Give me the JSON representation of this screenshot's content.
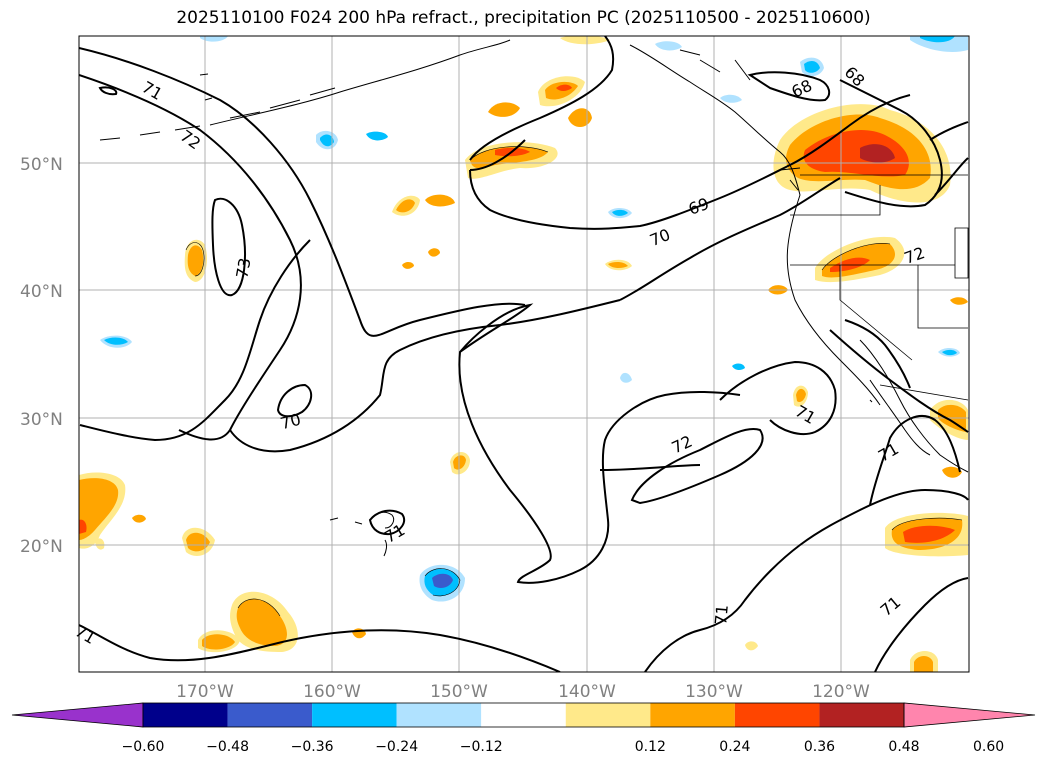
{
  "title": "2025110100 F024 200 hPa refract., precipitation PC (2025110500 - 2025110600)",
  "map": {
    "lon_range": [
      180,
      110
    ],
    "lat_range": [
      10,
      60
    ],
    "lat_ticks": [
      {
        "value": 50,
        "label": "50°N"
      },
      {
        "value": 40,
        "label": "40°N"
      },
      {
        "value": 30,
        "label": "30°N"
      },
      {
        "value": 20,
        "label": "20°N"
      }
    ],
    "lon_ticks": [
      {
        "value": 170,
        "label": "170°W"
      },
      {
        "value": 160,
        "label": "160°W"
      },
      {
        "value": 150,
        "label": "150°W"
      },
      {
        "value": 140,
        "label": "140°W"
      },
      {
        "value": 130,
        "label": "130°W"
      },
      {
        "value": 120,
        "label": "120°W"
      }
    ],
    "grid": true,
    "contour_labels": [
      "71",
      "72",
      "73",
      "70",
      "69",
      "68",
      "70",
      "72",
      "71",
      "71",
      "71",
      "71",
      "71",
      "72",
      "68",
      "71"
    ]
  },
  "colorbar": {
    "labels": [
      "−0.60",
      "−0.48",
      "−0.36",
      "−0.24",
      "−0.12",
      "0.12",
      "0.24",
      "0.36",
      "0.48",
      "0.60"
    ],
    "colors": [
      "#9932cc",
      "#00008b",
      "#3a5bcc",
      "#00bfff",
      "#b0e2ff",
      "#ffffff",
      "#ffe98a",
      "#ffa500",
      "#ff4500",
      "#b22222",
      "#ff85ad"
    ]
  }
}
